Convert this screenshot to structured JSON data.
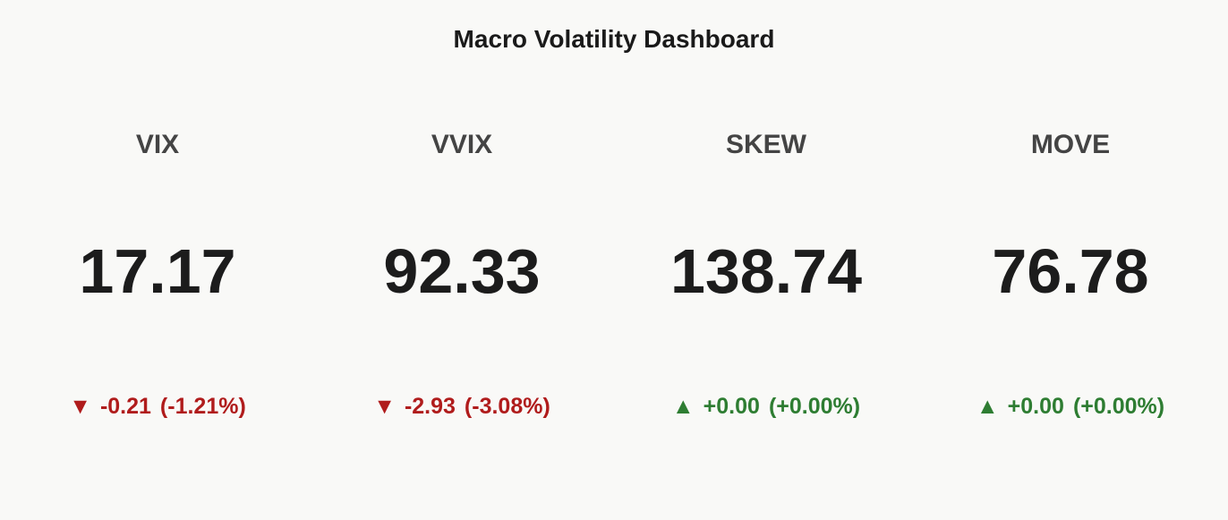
{
  "title": "Macro Volatility Dashboard",
  "cards": [
    {
      "label": "VIX",
      "value": "17.17",
      "arrow": "▼",
      "change": "-0.21",
      "change_pct": "(-1.21%)",
      "color": "#b01c1c"
    },
    {
      "label": "VVIX",
      "value": "92.33",
      "arrow": "▼",
      "change": "-2.93",
      "change_pct": "(-3.08%)",
      "color": "#b01c1c"
    },
    {
      "label": "SKEW",
      "value": "138.74",
      "arrow": "▲",
      "change": "+0.00",
      "change_pct": "(+0.00%)",
      "color": "#2e7d32"
    },
    {
      "label": "MOVE",
      "value": "76.78",
      "arrow": "▲",
      "change": "+0.00",
      "change_pct": "(+0.00%)",
      "color": "#2e7d32"
    }
  ]
}
